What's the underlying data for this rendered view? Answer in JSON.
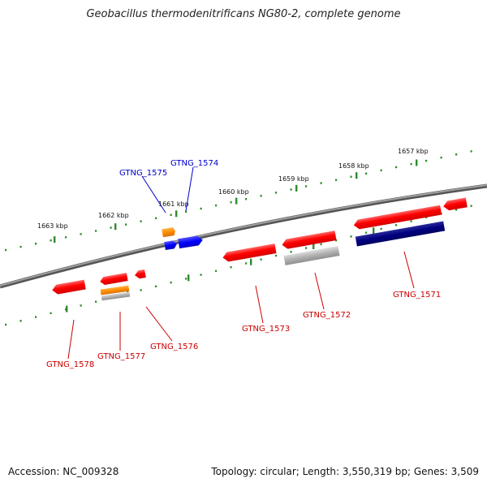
{
  "title": "Geobacillus thermodenitrificans NG80-2, complete genome",
  "footer": {
    "accession": "Accession: NC_009328",
    "summary": "Topology: circular; Length: 3,550,319 bp; Genes: 3,509"
  },
  "scale": {
    "tick_labels": [
      "1657 kbp",
      "1658 kbp",
      "1659 kbp",
      "1660 kbp",
      "1661 kbp",
      "1662 kbp",
      "1663 kbp"
    ],
    "tick_color": "#2e8b2e"
  },
  "colors": {
    "backbone": "#808080",
    "red_gene": "#ff0000",
    "blue_gene": "#0000ff",
    "navy_gene": "#000080",
    "orange_gene": "#ff8c00",
    "gray_gene": "#a9a9a9",
    "red_label": "#cc0000",
    "blue_label": "#0000cc"
  },
  "genes": [
    {
      "label": "GTNG_1571",
      "color": "red_label"
    },
    {
      "label": "GTNG_1572",
      "color": "red_label"
    },
    {
      "label": "GTNG_1573",
      "color": "red_label"
    },
    {
      "label": "GTNG_1574",
      "color": "blue_label"
    },
    {
      "label": "GTNG_1575",
      "color": "blue_label"
    },
    {
      "label": "GTNG_1576",
      "color": "red_label"
    },
    {
      "label": "GTNG_1577",
      "color": "red_label"
    },
    {
      "label": "GTNG_1578",
      "color": "red_label"
    }
  ]
}
